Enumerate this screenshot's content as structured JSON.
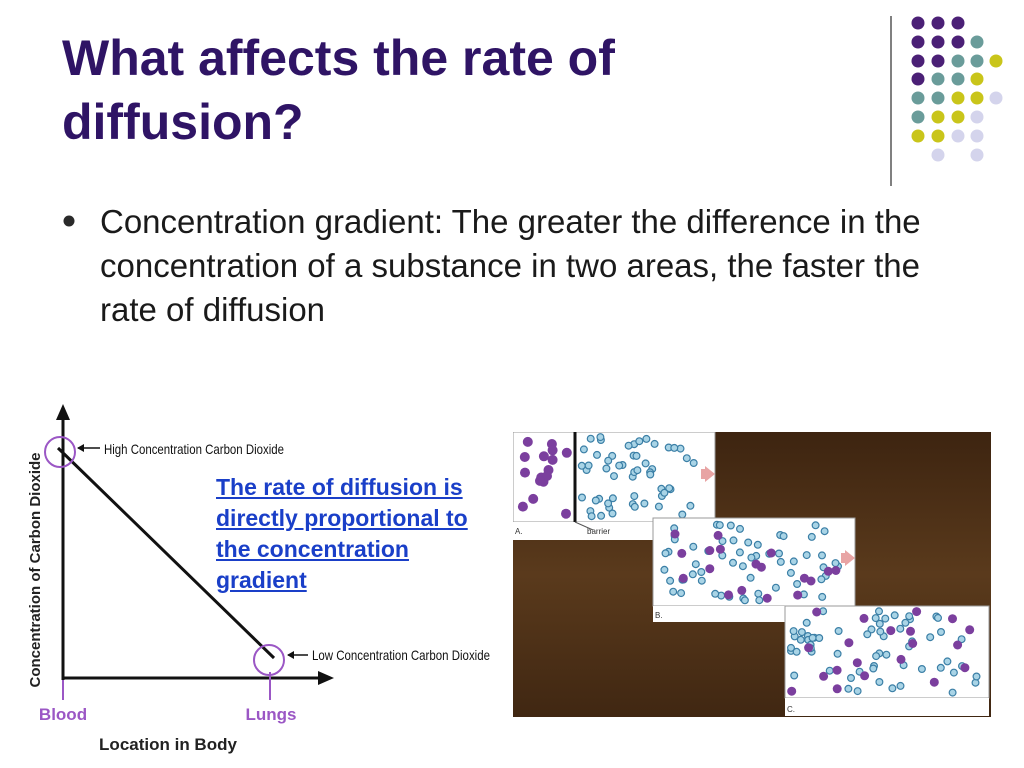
{
  "slide": {
    "title": "What affects the rate of diffusion?",
    "bullet": "Concentration gradient: The greater the difference in the concentration of a substance in two areas, the faster the rate of diffusion",
    "link_text": "The rate of diffusion is directly proportional to the concentration gradient"
  },
  "graph": {
    "y_axis_label": "Concentration of Carbon Dioxide",
    "x_axis_label": "Location in Body",
    "high_label": "High Concentration Carbon Dioxide",
    "low_label": "Low Concentration Carbon Dioxide",
    "x_tick_left": "Blood",
    "x_tick_right": "Lungs"
  },
  "illustration": {
    "panel_a": "A.",
    "panel_b": "B.",
    "panel_c": "C.",
    "barrier_label": "barrier"
  },
  "colors": {
    "title": "#2f1465",
    "purple": "#4b2076",
    "teal": "#6a9c9a",
    "yellow_green": "#c9c51a",
    "lavender": "#d4d4ec",
    "tick_labels": "#9b57c5",
    "link": "#1a3fc8"
  }
}
